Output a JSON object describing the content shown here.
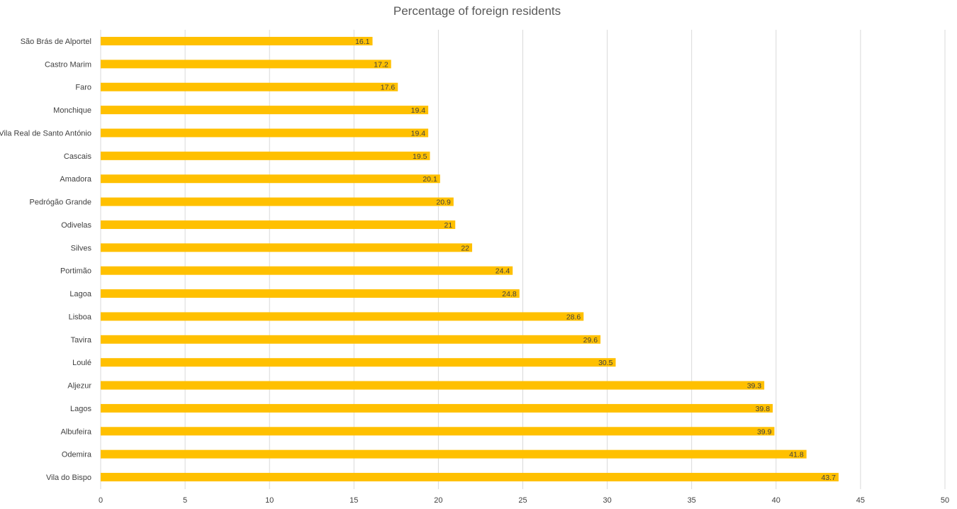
{
  "chart_data": {
    "type": "bar",
    "orientation": "horizontal",
    "title": "Percentage of foreign residents",
    "xlabel": "",
    "ylabel": "",
    "categories": [
      "São Brás de Alportel",
      "Castro Marim",
      "Faro",
      "Monchique",
      "Vila Real de Santo António",
      "Cascais",
      "Amadora",
      "Pedrógão Grande",
      "Odivelas",
      "Silves",
      "Portimão",
      "Lagoa",
      "Lisboa",
      "Tavira",
      "Loulé",
      "Aljezur",
      "Lagos",
      "Albufeira",
      "Odemira",
      "Vila do Bispo"
    ],
    "values": [
      16.1,
      17.2,
      17.6,
      19.4,
      19.4,
      19.5,
      20.1,
      20.9,
      21,
      22,
      24.4,
      24.8,
      28.6,
      29.6,
      30.5,
      39.3,
      39.8,
      39.9,
      41.8,
      43.7
    ],
    "xlim": [
      0,
      50
    ],
    "xticks": [
      0,
      5,
      10,
      15,
      20,
      25,
      30,
      35,
      40,
      45,
      50
    ],
    "grid": true,
    "legend": "none",
    "data_labels": true,
    "bar_color": "#ffc000"
  }
}
